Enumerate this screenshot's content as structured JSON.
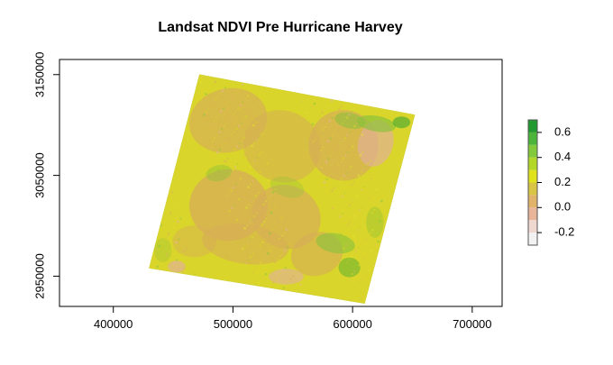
{
  "chart_data": {
    "type": "heatmap",
    "title": "Landsat NDVI Pre Hurricane Harvey",
    "xlabel": "",
    "ylabel": "",
    "xlim": [
      355000,
      725000
    ],
    "ylim": [
      2920000,
      3165000
    ],
    "x_ticks": [
      400000,
      500000,
      600000,
      700000
    ],
    "x_tick_labels": [
      "400000",
      "500000",
      "600000",
      "700000"
    ],
    "y_ticks": [
      2950000,
      3050000,
      3150000
    ],
    "y_tick_labels": [
      "2950000",
      "3050000",
      "3150000"
    ],
    "scene_corners": [
      {
        "name": "northwest",
        "x": 472000,
        "y": 3150000
      },
      {
        "name": "northeast",
        "x": 652000,
        "y": 3110000
      },
      {
        "name": "southeast",
        "x": 610000,
        "y": 2923000
      },
      {
        "name": "southwest",
        "x": 430000,
        "y": 2958000
      }
    ],
    "legend": {
      "position": "right",
      "min": -0.3,
      "max": 0.7,
      "ticks": [
        -0.2,
        0.0,
        0.2,
        0.4,
        0.6
      ],
      "tick_labels": [
        "-0.2",
        "0.0",
        "0.2",
        "0.4",
        "0.6"
      ],
      "bands": [
        {
          "from": -0.3,
          "to": -0.2,
          "color": "#f2f2f2"
        },
        {
          "from": -0.2,
          "to": -0.1,
          "color": "#eed8d0"
        },
        {
          "from": -0.1,
          "to": 0.0,
          "color": "#e8b49a"
        },
        {
          "from": 0.0,
          "to": 0.1,
          "color": "#e1b26a"
        },
        {
          "from": 0.1,
          "to": 0.2,
          "color": "#d9c545"
        },
        {
          "from": 0.2,
          "to": 0.3,
          "color": "#e0e21c"
        },
        {
          "from": 0.3,
          "to": 0.4,
          "color": "#b2d727"
        },
        {
          "from": 0.4,
          "to": 0.5,
          "color": "#82c93b"
        },
        {
          "from": 0.5,
          "to": 0.6,
          "color": "#4cb43a"
        },
        {
          "from": 0.6,
          "to": 0.7,
          "color": "#21992f"
        }
      ]
    },
    "dominant_colors": {
      "base": "#d9d52b",
      "low_vegetation": "#dcb25a",
      "bare": "#e7b49d",
      "high_vegetation": "#8cc63f",
      "dense_vegetation": "#3aa83b"
    }
  }
}
